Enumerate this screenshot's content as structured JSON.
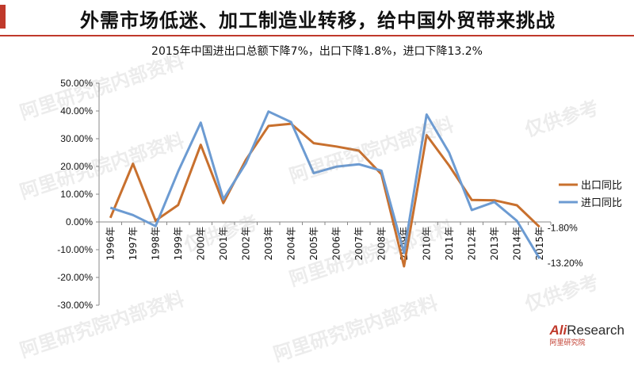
{
  "header": {
    "title": "外需市场低迷、加工制造业转移，给中国外贸带来挑战"
  },
  "subtitle": "2015年中国进出口总额下降7%，出口下降1.8%，进口下降13.2%",
  "watermarks": [
    "阿里研究院内部资料",
    "仅供参考"
  ],
  "logo": {
    "brand_prefix": "Ali",
    "brand_suffix": "Research",
    "sub": "阿里研究院"
  },
  "colors": {
    "export": "#c8702e",
    "import": "#6c9bd2",
    "accent": "#c0392b"
  },
  "chart_data": {
    "type": "line",
    "x": [
      "1996年",
      "1997年",
      "1998年",
      "1999年",
      "2000年",
      "2001年",
      "2002年",
      "2003年",
      "2004年",
      "2005年",
      "2006年",
      "2007年",
      "2008年",
      "2009年",
      "2010年",
      "2011年",
      "2012年",
      "2013年",
      "2014年",
      "2015年"
    ],
    "series": [
      {
        "name": "出口同比",
        "color": "#c8702e",
        "values": [
          1.5,
          21.0,
          0.5,
          6.1,
          27.8,
          6.8,
          22.4,
          34.6,
          35.4,
          28.4,
          27.2,
          25.7,
          17.2,
          -16.0,
          31.3,
          20.3,
          7.9,
          7.8,
          6.0,
          -1.8
        ]
      },
      {
        "name": "进口同比",
        "color": "#6c9bd2",
        "values": [
          5.1,
          2.5,
          -1.5,
          18.2,
          35.8,
          8.2,
          21.2,
          39.8,
          36.0,
          17.6,
          19.9,
          20.8,
          18.5,
          -11.2,
          38.7,
          24.9,
          4.3,
          7.2,
          0.4,
          -13.2
        ]
      }
    ],
    "yaxis": {
      "min": -30,
      "max": 50,
      "step": 10,
      "tick_labels": [
        "-30.00%",
        "-20.00%",
        "-10.00%",
        "0.00%",
        "10.00%",
        "20.00%",
        "30.00%",
        "40.00%",
        "50.00%"
      ]
    },
    "end_labels": {
      "export": "-1.80%",
      "import": "-13.20%"
    },
    "legend": {
      "placement": "right",
      "items": [
        "出口同比",
        "进口同比"
      ]
    },
    "grid": false
  }
}
